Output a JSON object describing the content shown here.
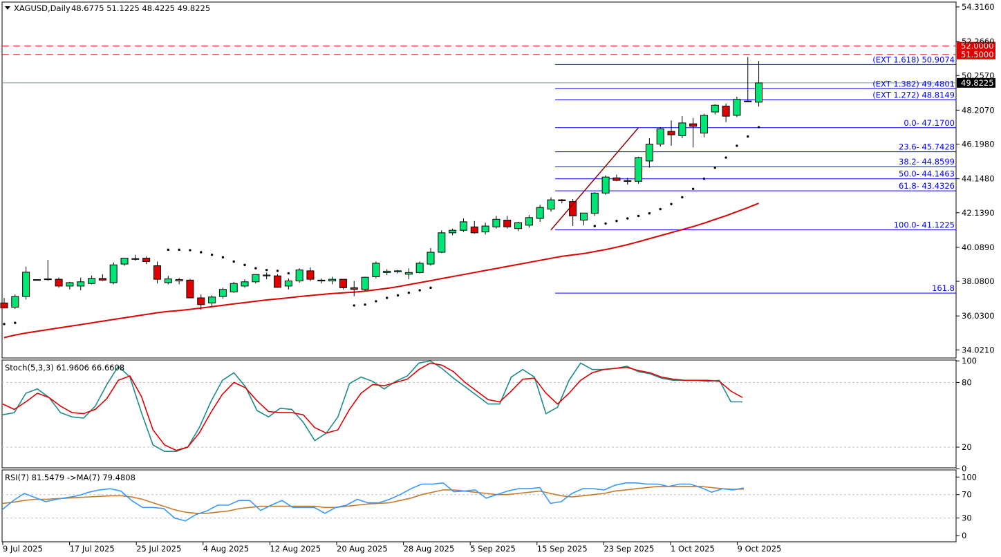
{
  "main_header": {
    "symbol": "XAGUSD,Daily",
    "ohlc": "48.6775 51.1225 48.4225 49.8225"
  },
  "stoch_header": "Stoch(5,3,3) 61.9606 66.6608",
  "rsi_header": "RSI(7) 81.5479 ->MA(7) 79.4808",
  "colors": {
    "bull": "#00e676",
    "bear": "#e00000",
    "fib": "#0000ff",
    "ma": "#e00000",
    "main": "#1a8a8a",
    "signal": "#e00000",
    "rsi": "#3399ff",
    "rsi_ma": "#c87828",
    "res": "#e00000"
  },
  "chart_data": {
    "type": "candlestick",
    "price_axis": {
      "ticks": [
        "54.3160",
        "52.2660",
        "50.2570",
        "48.2070",
        "46.1980",
        "44.1480",
        "42.1390",
        "40.0890",
        "38.0800",
        "36.0300",
        "34.0210"
      ],
      "ylim": [
        33.2,
        54.7
      ]
    },
    "x_labels": [
      "9 Jul 2025",
      "17 Jul 2025",
      "25 Jul 2025",
      "4 Aug 2025",
      "12 Aug 2025",
      "20 Aug 2025",
      "28 Aug 2025",
      "5 Sep 2025",
      "15 Sep 2025",
      "23 Sep 2025",
      "1 Oct 2025",
      "9 Oct 2025"
    ],
    "candles": [
      [
        36.8,
        37.1,
        36.48,
        36.5
      ],
      [
        36.55,
        37.3,
        36.45,
        37.18
      ],
      [
        37.18,
        38.95,
        37.0,
        38.62
      ],
      [
        38.15,
        38.15,
        38.15,
        38.18
      ],
      [
        38.22,
        39.35,
        38.1,
        38.18
      ],
      [
        38.2,
        38.3,
        37.7,
        37.8
      ],
      [
        37.8,
        38.05,
        37.6,
        38.0
      ],
      [
        37.8,
        38.3,
        37.55,
        38.05
      ],
      [
        37.95,
        38.42,
        37.9,
        38.25
      ],
      [
        38.25,
        38.5,
        38.1,
        38.15
      ],
      [
        38.0,
        39.2,
        37.9,
        39.05
      ],
      [
        39.1,
        39.48,
        39.0,
        39.45
      ],
      [
        39.38,
        39.65,
        39.3,
        39.42
      ],
      [
        39.45,
        39.55,
        39.1,
        39.25
      ],
      [
        39.0,
        39.25,
        37.95,
        38.2
      ],
      [
        38.0,
        38.4,
        37.9,
        38.22
      ],
      [
        38.1,
        38.28,
        37.9,
        38.18
      ],
      [
        38.15,
        38.22,
        37.2,
        37.1
      ],
      [
        37.1,
        37.3,
        36.4,
        36.7
      ],
      [
        36.8,
        37.25,
        36.6,
        37.15
      ],
      [
        37.18,
        37.7,
        37.05,
        37.6
      ],
      [
        37.45,
        38.05,
        37.4,
        37.95
      ],
      [
        37.8,
        38.2,
        37.7,
        38.05
      ],
      [
        38.05,
        38.5,
        37.95,
        38.48
      ],
      [
        38.4,
        38.6,
        38.2,
        38.45
      ],
      [
        38.4,
        38.5,
        37.7,
        37.72
      ],
      [
        37.8,
        38.25,
        37.6,
        38.1
      ],
      [
        38.1,
        38.85,
        38.0,
        38.75
      ],
      [
        38.7,
        38.9,
        38.1,
        38.2
      ],
      [
        38.1,
        38.25,
        37.95,
        38.15
      ],
      [
        38.1,
        38.35,
        37.9,
        38.2
      ],
      [
        38.2,
        38.2,
        37.6,
        37.7
      ],
      [
        37.7,
        38.1,
        37.2,
        37.6
      ],
      [
        37.6,
        38.35,
        37.5,
        38.32
      ],
      [
        38.35,
        39.25,
        38.25,
        39.15
      ],
      [
        38.6,
        38.8,
        38.45,
        38.68
      ],
      [
        38.65,
        38.75,
        38.55,
        38.7
      ],
      [
        38.5,
        38.85,
        38.2,
        38.6
      ],
      [
        38.6,
        39.25,
        38.55,
        39.15
      ],
      [
        39.1,
        40.05,
        39.0,
        39.8
      ],
      [
        39.8,
        41.1,
        39.75,
        40.95
      ],
      [
        40.95,
        41.2,
        40.8,
        41.1
      ],
      [
        41.1,
        41.8,
        41.0,
        41.6
      ],
      [
        41.3,
        41.65,
        40.9,
        40.95
      ],
      [
        41.0,
        41.55,
        40.85,
        41.35
      ],
      [
        41.3,
        41.95,
        41.2,
        41.75
      ],
      [
        41.7,
        41.95,
        41.2,
        41.3
      ],
      [
        41.2,
        41.6,
        41.05,
        41.55
      ],
      [
        41.4,
        42.0,
        41.25,
        41.85
      ],
      [
        41.8,
        42.6,
        41.6,
        42.45
      ],
      [
        42.35,
        43.05,
        42.2,
        42.9
      ],
      [
        42.9,
        42.95,
        42.7,
        42.85
      ],
      [
        42.8,
        42.95,
        41.35,
        41.95
      ],
      [
        41.7,
        42.1,
        41.4,
        42.12
      ],
      [
        42.1,
        43.35,
        41.95,
        43.3
      ],
      [
        43.3,
        44.35,
        43.2,
        44.25
      ],
      [
        44.2,
        44.4,
        44.0,
        44.05
      ],
      [
        44.0,
        44.2,
        43.8,
        44.03
      ],
      [
        44.0,
        45.45,
        43.85,
        45.4
      ],
      [
        45.2,
        46.55,
        44.8,
        46.2
      ],
      [
        46.2,
        47.2,
        46.05,
        47.1
      ],
      [
        46.95,
        47.6,
        46.1,
        46.75
      ],
      [
        46.7,
        47.85,
        46.55,
        47.45
      ],
      [
        47.4,
        47.75,
        46.0,
        47.25
      ],
      [
        46.85,
        48.0,
        46.6,
        47.9
      ],
      [
        48.1,
        48.55,
        47.95,
        48.5
      ],
      [
        48.45,
        48.6,
        47.5,
        47.85
      ],
      [
        47.9,
        49.0,
        47.8,
        48.85
      ],
      [
        48.75,
        51.35,
        48.7,
        48.7
      ],
      [
        48.68,
        51.12,
        48.42,
        49.82
      ]
    ],
    "sar": [
      35.55,
      35.62,
      null,
      null,
      null,
      null,
      null,
      null,
      null,
      null,
      null,
      null,
      null,
      null,
      null,
      39.95,
      39.95,
      39.92,
      39.8,
      39.65,
      39.5,
      39.25,
      39.05,
      38.85,
      38.75,
      38.7,
      38.55,
      null,
      null,
      null,
      null,
      null,
      36.65,
      36.7,
      36.9,
      37.1,
      37.25,
      37.4,
      37.55,
      37.7,
      null,
      null,
      null,
      null,
      null,
      null,
      null,
      null,
      null,
      null,
      null,
      null,
      null,
      null,
      41.35,
      41.5,
      41.65,
      41.8,
      41.95,
      42.1,
      42.35,
      42.65,
      43.05,
      43.55,
      44.15,
      44.8,
      45.4,
      46.1,
      46.65,
      47.2
    ],
    "sma": [
      34.75,
      34.9,
      35.02,
      35.12,
      35.22,
      35.32,
      35.42,
      35.52,
      35.62,
      35.72,
      35.82,
      35.92,
      36.02,
      36.12,
      36.22,
      36.3,
      36.35,
      36.42,
      36.5,
      36.58,
      36.66,
      36.74,
      36.82,
      36.9,
      36.98,
      37.04,
      37.1,
      37.18,
      37.24,
      37.3,
      37.36,
      37.4,
      37.44,
      37.5,
      37.58,
      37.66,
      37.76,
      37.88,
      38.0,
      38.12,
      38.24,
      38.36,
      38.48,
      38.6,
      38.72,
      38.84,
      38.96,
      39.08,
      39.2,
      39.32,
      39.44,
      39.56,
      39.64,
      39.72,
      39.84,
      39.96,
      40.1,
      40.25,
      40.42,
      40.6,
      40.78,
      40.96,
      41.14,
      41.32,
      41.52,
      41.74,
      41.96,
      42.2,
      42.44,
      42.7
    ],
    "fibonacci": {
      "retracement": [
        {
          "label": "0.0- 47.1700",
          "value": 47.17
        },
        {
          "label": "23.6- 45.7428",
          "value": 45.7428
        },
        {
          "label": "38.2- 44.8599",
          "value": 44.8599
        },
        {
          "label": "50.0- 44.1463",
          "value": 44.1463
        },
        {
          "label": "61.8- 43.4326",
          "value": 43.4326
        },
        {
          "label": "100.0- 41.1225",
          "value": 41.1225
        },
        {
          "label": "161.8",
          "value": 37.38
        }
      ],
      "extension": [
        {
          "label": "(EXT 1.618)  50.9074",
          "value": 50.9074
        },
        {
          "label": "(EXT 1.382)  49.4801",
          "value": 49.4801
        },
        {
          "label": "(EXT 1.272)  48.8149",
          "value": 48.8149
        }
      ],
      "trend_line": {
        "from_index": 50,
        "from": 41.12,
        "to_index": 58,
        "to": 47.17
      }
    },
    "resistance": [
      {
        "label": "52.0000",
        "value": 52.0
      },
      {
        "label": "51.5000",
        "value": 51.5
      }
    ],
    "current_price": {
      "label": "49.8225",
      "value": 49.8225
    },
    "stochastic": {
      "levels": [
        {
          "label": "100",
          "value": 100
        },
        {
          "label": "80",
          "value": 80
        },
        {
          "label": "20",
          "value": 20
        },
        {
          "label": "0",
          "value": 0
        }
      ],
      "main": [
        50,
        52,
        70,
        74,
        66,
        52,
        48,
        47,
        58,
        78,
        95,
        85,
        52,
        22,
        16,
        16,
        20,
        38,
        62,
        82,
        89,
        76,
        54,
        48,
        56,
        55,
        43,
        26,
        33,
        48,
        79,
        85,
        81,
        74,
        81,
        86,
        98,
        100,
        93,
        84,
        76,
        68,
        60,
        60,
        85,
        92,
        85,
        51,
        57,
        82,
        98,
        92,
        92,
        93,
        95,
        90,
        88,
        84,
        82,
        82,
        82,
        81,
        82,
        62,
        62
      ],
      "signal": [
        60,
        55,
        62,
        70,
        66,
        58,
        52,
        51,
        55,
        65,
        82,
        86,
        67,
        36,
        22,
        17,
        20,
        33,
        52,
        69,
        80,
        75,
        63,
        53,
        52,
        52,
        50,
        38,
        33,
        36,
        55,
        70,
        78,
        77,
        80,
        83,
        92,
        98,
        96,
        90,
        80,
        72,
        64,
        62,
        72,
        83,
        84,
        70,
        60,
        70,
        82,
        89,
        92,
        93,
        94,
        91,
        89,
        85,
        83,
        82,
        82,
        82,
        81,
        72,
        66
      ]
    },
    "rsi": {
      "levels": [
        {
          "label": "100",
          "value": 100
        },
        {
          "label": "70",
          "value": 70
        },
        {
          "label": "30",
          "value": 30
        },
        {
          "label": "0",
          "value": 0
        }
      ],
      "main": [
        45,
        60,
        72,
        65,
        58,
        62,
        65,
        68,
        74,
        78,
        80,
        76,
        60,
        48,
        48,
        46,
        30,
        25,
        36,
        42,
        52,
        52,
        60,
        60,
        43,
        52,
        60,
        48,
        48,
        48,
        38,
        48,
        52,
        62,
        56,
        56,
        62,
        70,
        80,
        88,
        88,
        90,
        75,
        76,
        78,
        64,
        70,
        76,
        80,
        80,
        82,
        55,
        58,
        72,
        80,
        80,
        78,
        86,
        90,
        90,
        88,
        88,
        84,
        88,
        88,
        82,
        74,
        80,
        78,
        81.5
      ],
      "ma": [
        55,
        57,
        60,
        62,
        62,
        63,
        64,
        65,
        66,
        67,
        68,
        68,
        66,
        62,
        56,
        50,
        44,
        40,
        38,
        38,
        40,
        42,
        46,
        48,
        50,
        50,
        50,
        50,
        50,
        50,
        48,
        48,
        50,
        52,
        54,
        55,
        56,
        60,
        64,
        70,
        74,
        78,
        78,
        76,
        74,
        72,
        70,
        70,
        72,
        74,
        76,
        72,
        68,
        66,
        68,
        70,
        72,
        76,
        78,
        80,
        82,
        84,
        84,
        84,
        84,
        84,
        82,
        80,
        79,
        79.5
      ]
    }
  }
}
